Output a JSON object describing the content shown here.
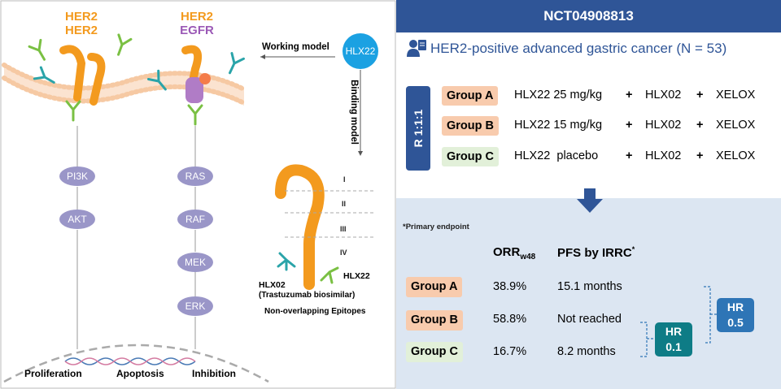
{
  "left_panel": {
    "her_labels": [
      {
        "line1": "HER2",
        "line2": "HER2"
      },
      {
        "line1": "HER2",
        "line2": "EGFR"
      }
    ],
    "pathway_left": [
      "PI3K",
      "AKT"
    ],
    "pathway_right": [
      "RAS",
      "RAF",
      "MEK",
      "ERK"
    ],
    "outcomes": [
      "Proliferation",
      "Apoptosis",
      "Inhibition"
    ],
    "working_model": "Working model",
    "binding_model": "Binding model",
    "drug_name": "HLX22",
    "epitopes": [
      "I",
      "II",
      "III",
      "IV"
    ],
    "antibody_hlx22": "HLX22",
    "antibody_hlx02": "HLX02",
    "antibody_hlx02_sub": "(Trastuzumab biosimilar)",
    "epitope_caption": "Non-overlapping Epitopes",
    "colors": {
      "orange": "#f39a1e",
      "purple": "#9b59b6",
      "node": "#9a96c8",
      "membrane": "#f6c9a3"
    }
  },
  "right_panel": {
    "trial_id": "NCT04908813",
    "population": "HER2-positive advanced gastric cancer (N = 53)",
    "randomization": "R 1:1:1",
    "groups": [
      {
        "label": "Group A",
        "dose": "HLX22 25 mg/kg",
        "plus1": "+",
        "drug2": "HLX02",
        "plus2": "+",
        "drug3": "XELOX",
        "color": "#f8cbad"
      },
      {
        "label": "Group B",
        "dose": "HLX22 15 mg/kg",
        "plus1": "+",
        "drug2": "HLX02",
        "plus2": "+",
        "drug3": "XELOX",
        "color": "#f8cbad"
      },
      {
        "label": "Group C",
        "dose": "HLX22  placebo",
        "plus1": "+",
        "drug2": "HLX02",
        "plus2": "+",
        "drug3": "XELOX",
        "color": "#e2f0d9"
      }
    ],
    "endpoint_note": "*Primary endpoint",
    "orr_header": "ORR",
    "orr_sub": "w48",
    "pfs_header": "PFS by IRRC",
    "pfs_star": "*",
    "results": [
      {
        "label": "Group A",
        "orr": "38.9%",
        "pfs": "15.1 months"
      },
      {
        "label": "Group B",
        "orr": "58.8%",
        "pfs": "Not reached"
      },
      {
        "label": "Group C",
        "orr": "16.7%",
        "pfs": "8.2 months"
      }
    ],
    "hr_inner": {
      "line1": "HR",
      "line2": "0.1"
    },
    "hr_outer": {
      "line1": "HR",
      "line2": "0.5"
    },
    "colors": {
      "banner": "#2f5597",
      "hr_inner": "#0e7c86",
      "hr_outer": "#2e75b6",
      "bottom_bg": "#dce6f2"
    }
  }
}
